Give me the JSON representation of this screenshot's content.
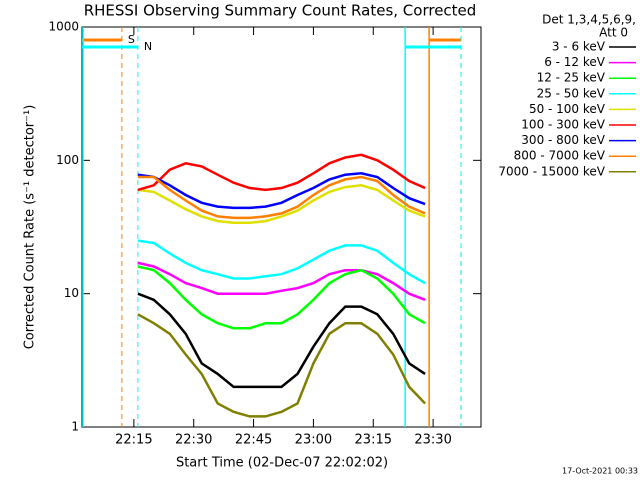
{
  "chart_data": {
    "type": "line",
    "title": "RHESSI Observing Summary Count Rates, Corrected",
    "x_label": "Start Time (02-Dec-07 22:02:02)",
    "y_label": "Corrected Count Rate (s⁻¹ detector⁻¹)",
    "legend_header": [
      "Det 1,3,4,5,6,9,",
      "Att 0"
    ],
    "footer": "17-Oct-2021 00:33",
    "log_y": true,
    "xlim": [
      "22:02",
      "23:42"
    ],
    "xticks": [
      "22:15",
      "22:30",
      "22:45",
      "23:00",
      "23:15",
      "23:30"
    ],
    "ylim": [
      1,
      1000
    ],
    "yticks": [
      1,
      10,
      100,
      1000
    ],
    "flags": [
      {
        "label": "S",
        "color": "#ff8000",
        "spans": [
          [
            "22:02",
            "22:12"
          ],
          [
            "23:29",
            "23:37"
          ]
        ]
      },
      {
        "label": "N",
        "color": "#00ffff",
        "spans": [
          [
            "22:02",
            "22:16"
          ],
          [
            "23:23",
            "23:37"
          ]
        ]
      }
    ],
    "x": [
      "22:16",
      "22:20",
      "22:24",
      "22:28",
      "22:32",
      "22:36",
      "22:40",
      "22:44",
      "22:48",
      "22:52",
      "22:56",
      "23:00",
      "23:04",
      "23:08",
      "23:12",
      "23:16",
      "23:20",
      "23:24",
      "23:28"
    ],
    "series": [
      {
        "name": "3 - 6 keV",
        "color": "#000000",
        "values": [
          10,
          9,
          7,
          5,
          3,
          2.5,
          2,
          2,
          2,
          2,
          2.5,
          4,
          6,
          8,
          8,
          7,
          5,
          3,
          2.5
        ]
      },
      {
        "name": "6 - 12 keV",
        "color": "#ff00ff",
        "values": [
          17,
          16,
          14,
          12,
          11,
          10,
          10,
          10,
          10,
          10.5,
          11,
          12,
          14,
          15,
          15,
          14,
          12,
          10,
          9
        ]
      },
      {
        "name": "12 - 25 keV",
        "color": "#00ff00",
        "values": [
          16,
          15,
          12,
          9,
          7,
          6,
          5.5,
          5.5,
          6,
          6,
          7,
          9,
          12,
          14,
          15,
          13,
          10,
          7,
          6
        ]
      },
      {
        "name": "25 - 50 keV",
        "color": "#00ffff",
        "values": [
          25,
          24,
          20,
          17,
          15,
          14,
          13,
          13,
          13.5,
          14,
          15.5,
          18,
          21,
          23,
          23,
          21,
          17,
          14,
          12
        ]
      },
      {
        "name": "50 - 100 keV",
        "color": "#e0e000",
        "values": [
          60,
          58,
          50,
          43,
          38,
          35,
          34,
          34,
          35,
          38,
          42,
          50,
          58,
          63,
          65,
          60,
          50,
          42,
          38
        ]
      },
      {
        "name": "100 - 300 keV",
        "color": "#ff0000",
        "values": [
          60,
          65,
          85,
          95,
          90,
          78,
          68,
          62,
          60,
          62,
          68,
          80,
          95,
          105,
          110,
          100,
          85,
          70,
          62
        ]
      },
      {
        "name": "300 - 800 keV",
        "color": "#0000ff",
        "values": [
          78,
          75,
          65,
          55,
          48,
          45,
          44,
          44,
          45,
          48,
          55,
          62,
          72,
          78,
          80,
          75,
          62,
          52,
          47
        ]
      },
      {
        "name": "800 - 7000 keV",
        "color": "#ff8000",
        "values": [
          75,
          75,
          60,
          50,
          42,
          38,
          37,
          37,
          38,
          40,
          45,
          55,
          65,
          72,
          75,
          70,
          55,
          45,
          40
        ]
      },
      {
        "name": "7000 - 15000 keV",
        "color": "#808000",
        "values": [
          7,
          6,
          5,
          3.5,
          2.5,
          1.5,
          1.3,
          1.2,
          1.2,
          1.3,
          1.5,
          3,
          5,
          6,
          6,
          5,
          3.5,
          2,
          1.5
        ]
      }
    ]
  }
}
